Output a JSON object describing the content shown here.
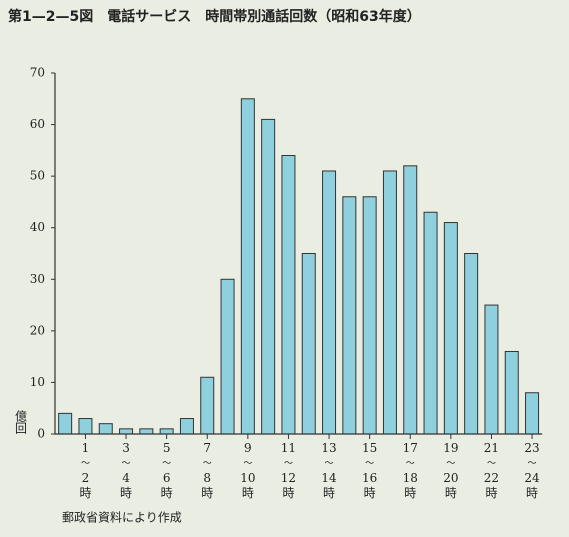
{
  "chart_data": {
    "type": "bar",
    "title": "第1—2—5図　電話サービス　時間帯別通話回数（昭和63年度）",
    "y_label": "億回",
    "source": "郵政省資料により作成",
    "categories": [
      null,
      "1〜2時",
      null,
      "3〜4時",
      null,
      "5〜6時",
      null,
      "7〜8時",
      null,
      "9〜10時",
      null,
      "11〜12時",
      null,
      "13〜14時",
      null,
      "15〜16時",
      null,
      "17〜18時",
      null,
      "19〜20時",
      null,
      "21〜22時",
      null,
      "23〜24時"
    ],
    "values": [
      4,
      3,
      2,
      1,
      1,
      1,
      3,
      11,
      30,
      65,
      61,
      54,
      35,
      51,
      46,
      46,
      51,
      52,
      43,
      41,
      35,
      25,
      16,
      8
    ],
    "color": "#8fd0df",
    "ylim": [
      0,
      70
    ],
    "yticks": [
      0,
      10,
      20,
      30,
      40,
      50,
      60,
      70
    ]
  }
}
